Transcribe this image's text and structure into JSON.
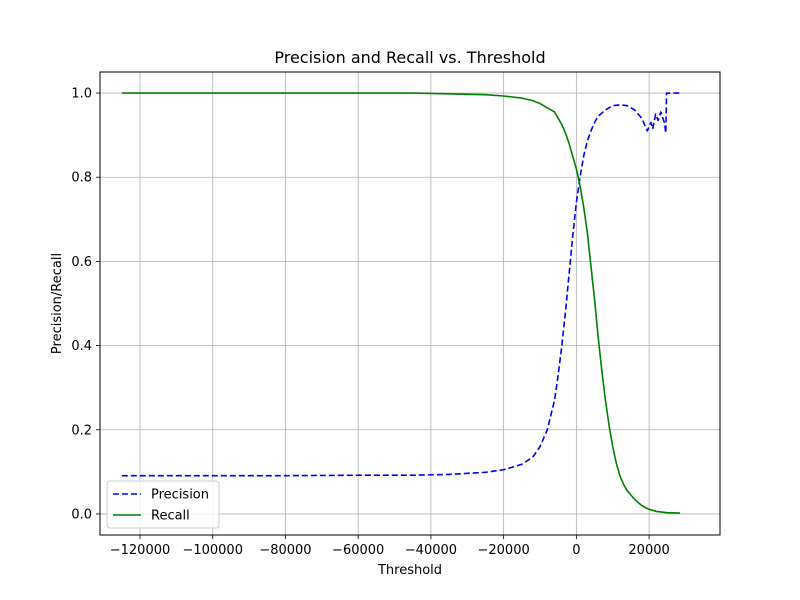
{
  "chart_data": {
    "type": "line",
    "title": "Precision and Recall vs. Threshold",
    "xlabel": "Threshold",
    "ylabel": "Precision/Recall",
    "xlim": [
      -131000,
      39500
    ],
    "ylim": [
      -0.05,
      1.05
    ],
    "x_ticks": [
      -120000,
      -100000,
      -80000,
      -60000,
      -40000,
      -20000,
      0,
      20000
    ],
    "x_tick_labels": [
      "−120000",
      "−100000",
      "−80000",
      "−60000",
      "−40000",
      "−20000",
      "0",
      "20000"
    ],
    "y_ticks": [
      0.0,
      0.2,
      0.4,
      0.6,
      0.8,
      1.0
    ],
    "y_tick_labels": [
      "0.0",
      "0.2",
      "0.4",
      "0.6",
      "0.8",
      "1.0"
    ],
    "grid": true,
    "legend_position": "lower-left",
    "series": [
      {
        "name": "Precision",
        "color": "#0000ff",
        "style": "dashed",
        "points": [
          [
            -125000,
            0.091
          ],
          [
            -100000,
            0.091
          ],
          [
            -80000,
            0.091
          ],
          [
            -60000,
            0.092
          ],
          [
            -45000,
            0.092
          ],
          [
            -35000,
            0.094
          ],
          [
            -25000,
            0.099
          ],
          [
            -20000,
            0.105
          ],
          [
            -15000,
            0.118
          ],
          [
            -12000,
            0.135
          ],
          [
            -10000,
            0.16
          ],
          [
            -8000,
            0.2
          ],
          [
            -6000,
            0.27
          ],
          [
            -5000,
            0.33
          ],
          [
            -4000,
            0.4
          ],
          [
            -3000,
            0.48
          ],
          [
            -2000,
            0.57
          ],
          [
            -1000,
            0.66
          ],
          [
            0,
            0.74
          ],
          [
            1000,
            0.8
          ],
          [
            2000,
            0.85
          ],
          [
            3000,
            0.885
          ],
          [
            4000,
            0.91
          ],
          [
            5000,
            0.93
          ],
          [
            6000,
            0.945
          ],
          [
            8000,
            0.96
          ],
          [
            10000,
            0.97
          ],
          [
            12000,
            0.972
          ],
          [
            14000,
            0.97
          ],
          [
            16000,
            0.96
          ],
          [
            18000,
            0.94
          ],
          [
            19500,
            0.91
          ],
          [
            20500,
            0.93
          ],
          [
            21000,
            0.915
          ],
          [
            21800,
            0.95
          ],
          [
            22500,
            0.935
          ],
          [
            23200,
            0.955
          ],
          [
            24200,
            0.93
          ],
          [
            24600,
            0.905
          ],
          [
            24800,
            1.0
          ],
          [
            26000,
            1.0
          ],
          [
            28500,
            1.0
          ]
        ]
      },
      {
        "name": "Recall",
        "color": "#008000",
        "style": "solid",
        "points": [
          [
            -125000,
            1.0
          ],
          [
            -100000,
            1.0
          ],
          [
            -80000,
            1.0
          ],
          [
            -60000,
            1.0
          ],
          [
            -45000,
            1.0
          ],
          [
            -40000,
            0.999
          ],
          [
            -30000,
            0.997
          ],
          [
            -25000,
            0.996
          ],
          [
            -20000,
            0.993
          ],
          [
            -15000,
            0.988
          ],
          [
            -12000,
            0.982
          ],
          [
            -10000,
            0.975
          ],
          [
            -8000,
            0.965
          ],
          [
            -6000,
            0.955
          ],
          [
            -5000,
            0.94
          ],
          [
            -4000,
            0.925
          ],
          [
            -3000,
            0.905
          ],
          [
            -2000,
            0.88
          ],
          [
            -1000,
            0.85
          ],
          [
            0,
            0.82
          ],
          [
            1000,
            0.78
          ],
          [
            2000,
            0.73
          ],
          [
            3000,
            0.67
          ],
          [
            4000,
            0.59
          ],
          [
            5000,
            0.51
          ],
          [
            6000,
            0.42
          ],
          [
            7000,
            0.34
          ],
          [
            8000,
            0.27
          ],
          [
            9000,
            0.21
          ],
          [
            10000,
            0.16
          ],
          [
            11000,
            0.12
          ],
          [
            12000,
            0.09
          ],
          [
            13000,
            0.07
          ],
          [
            14000,
            0.055
          ],
          [
            15000,
            0.045
          ],
          [
            16000,
            0.035
          ],
          [
            17000,
            0.027
          ],
          [
            18000,
            0.02
          ],
          [
            19000,
            0.015
          ],
          [
            20000,
            0.011
          ],
          [
            22000,
            0.006
          ],
          [
            25000,
            0.003
          ],
          [
            28500,
            0.002
          ]
        ]
      }
    ]
  }
}
